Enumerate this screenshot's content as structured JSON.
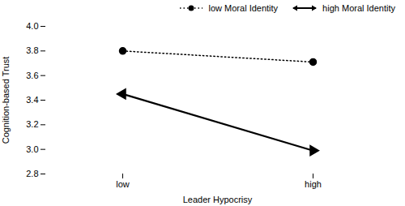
{
  "chart_data": {
    "type": "line",
    "xlabel": "Leader Hypocrisy",
    "ylabel": "Cognition-based Trust",
    "categories": [
      "low",
      "high"
    ],
    "series": [
      {
        "name": "low Moral Identity",
        "color": "black",
        "values": [
          3.8,
          3.71
        ],
        "marker": "circle",
        "line_style": "dotted"
      },
      {
        "name": "high Moral Identity",
        "color": "black",
        "values": [
          3.45,
          2.99
        ],
        "marker": "triangle",
        "line_style": "solid"
      }
    ],
    "ylim": [
      2.8,
      4.0
    ],
    "yticks": [
      2.8,
      {
        "value": 3.0,
        "label": "3.0"
      },
      3.2,
      3.4,
      3.6,
      3.8,
      {
        "value": 4.0,
        "label": "4.0"
      }
    ],
    "legend": "upper right"
  }
}
